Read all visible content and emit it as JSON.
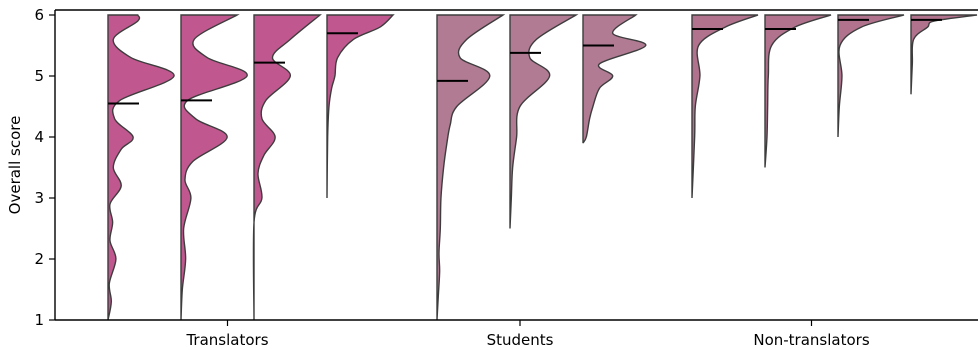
{
  "chart_data": {
    "type": "violin",
    "title": "",
    "xlabel": "",
    "ylabel": "Overall score",
    "ylim": [
      1,
      6
    ],
    "yticks": [
      1,
      2,
      3,
      4,
      5,
      6
    ],
    "groups": [
      {
        "name": "Translators",
        "color": "#c0588f",
        "violins": [
          {
            "min": 1.0,
            "mean": 4.55,
            "density": [
              [
                1.0,
                0.0
              ],
              [
                1.3,
                0.05
              ],
              [
                1.6,
                0.02
              ],
              [
                2.0,
                0.12
              ],
              [
                2.3,
                0.03
              ],
              [
                2.6,
                0.07
              ],
              [
                2.9,
                0.03
              ],
              [
                3.2,
                0.2
              ],
              [
                3.5,
                0.08
              ],
              [
                3.8,
                0.2
              ],
              [
                4.0,
                0.38
              ],
              [
                4.3,
                0.1
              ],
              [
                4.6,
                0.18
              ],
              [
                5.0,
                1.0
              ],
              [
                5.3,
                0.35
              ],
              [
                5.6,
                0.08
              ],
              [
                5.9,
                0.45
              ],
              [
                6.0,
                0.45
              ]
            ]
          },
          {
            "min": 1.0,
            "mean": 4.6,
            "density": [
              [
                1.0,
                0.0
              ],
              [
                1.5,
                0.02
              ],
              [
                2.0,
                0.07
              ],
              [
                2.5,
                0.04
              ],
              [
                3.0,
                0.15
              ],
              [
                3.3,
                0.06
              ],
              [
                3.6,
                0.18
              ],
              [
                4.0,
                0.7
              ],
              [
                4.3,
                0.22
              ],
              [
                4.6,
                0.1
              ],
              [
                5.0,
                1.0
              ],
              [
                5.3,
                0.4
              ],
              [
                5.6,
                0.2
              ],
              [
                6.0,
                0.85
              ]
            ]
          },
          {
            "min": 1.0,
            "mean": 5.22,
            "density": [
              [
                1.0,
                0.0
              ],
              [
                2.6,
                0.0
              ],
              [
                3.0,
                0.12
              ],
              [
                3.4,
                0.06
              ],
              [
                3.7,
                0.15
              ],
              [
                4.0,
                0.32
              ],
              [
                4.3,
                0.12
              ],
              [
                4.6,
                0.18
              ],
              [
                5.0,
                0.55
              ],
              [
                5.3,
                0.28
              ],
              [
                5.6,
                0.55
              ],
              [
                6.0,
                1.0
              ]
            ]
          },
          {
            "min": 3.0,
            "mean": 5.7,
            "density": [
              [
                3.0,
                0.0
              ],
              [
                4.0,
                0.01
              ],
              [
                4.5,
                0.03
              ],
              [
                4.8,
                0.07
              ],
              [
                5.0,
                0.12
              ],
              [
                5.3,
                0.16
              ],
              [
                5.6,
                0.4
              ],
              [
                5.8,
                0.8
              ],
              [
                6.0,
                1.0
              ]
            ]
          }
        ]
      },
      {
        "name": "Students",
        "color": "#b07b93",
        "violins": [
          {
            "min": 1.0,
            "mean": 4.92,
            "density": [
              [
                1.0,
                0.0
              ],
              [
                1.4,
                0.02
              ],
              [
                1.8,
                0.04
              ],
              [
                2.1,
                0.03
              ],
              [
                2.5,
                0.05
              ],
              [
                3.0,
                0.06
              ],
              [
                3.5,
                0.1
              ],
              [
                3.9,
                0.15
              ],
              [
                4.2,
                0.2
              ],
              [
                4.5,
                0.3
              ],
              [
                5.0,
                0.8
              ],
              [
                5.3,
                0.35
              ],
              [
                5.6,
                0.45
              ],
              [
                6.0,
                1.0
              ]
            ]
          },
          {
            "min": 2.5,
            "mean": 5.38,
            "density": [
              [
                2.5,
                0.0
              ],
              [
                3.0,
                0.02
              ],
              [
                3.5,
                0.04
              ],
              [
                4.0,
                0.1
              ],
              [
                4.5,
                0.15
              ],
              [
                5.0,
                0.6
              ],
              [
                5.3,
                0.3
              ],
              [
                5.6,
                0.4
              ],
              [
                6.0,
                1.0
              ]
            ]
          },
          {
            "min": 3.9,
            "mean": 5.5,
            "density": [
              [
                3.9,
                0.0
              ],
              [
                4.0,
                0.05
              ],
              [
                4.3,
                0.1
              ],
              [
                4.5,
                0.15
              ],
              [
                4.8,
                0.25
              ],
              [
                5.0,
                0.45
              ],
              [
                5.2,
                0.25
              ],
              [
                5.5,
                0.95
              ],
              [
                5.7,
                0.45
              ],
              [
                6.0,
                0.8
              ]
            ]
          }
        ]
      },
      {
        "name": "Non-translators",
        "color": "#b0728d",
        "violins": [
          {
            "min": 3.0,
            "mean": 5.77,
            "density": [
              [
                3.0,
                0.0
              ],
              [
                4.0,
                0.04
              ],
              [
                4.5,
                0.05
              ],
              [
                5.0,
                0.12
              ],
              [
                5.5,
                0.1
              ],
              [
                5.8,
                0.5
              ],
              [
                6.0,
                1.0
              ]
            ]
          },
          {
            "min": 3.5,
            "mean": 5.77,
            "density": [
              [
                3.5,
                0.0
              ],
              [
                4.0,
                0.03
              ],
              [
                4.5,
                0.04
              ],
              [
                5.0,
                0.05
              ],
              [
                5.5,
                0.1
              ],
              [
                5.8,
                0.45
              ],
              [
                6.0,
                1.0
              ]
            ]
          },
          {
            "min": 4.0,
            "mean": 5.92,
            "density": [
              [
                4.0,
                0.0
              ],
              [
                4.5,
                0.02
              ],
              [
                5.0,
                0.06
              ],
              [
                5.5,
                0.03
              ],
              [
                5.8,
                0.35
              ],
              [
                6.0,
                1.0
              ]
            ]
          },
          {
            "min": 4.7,
            "mean": 5.92,
            "density": [
              [
                4.7,
                0.0
              ],
              [
                5.2,
                0.02
              ],
              [
                5.6,
                0.04
              ],
              [
                5.8,
                0.25
              ],
              [
                5.9,
                0.35
              ],
              [
                6.0,
                1.0
              ]
            ]
          }
        ]
      }
    ]
  }
}
